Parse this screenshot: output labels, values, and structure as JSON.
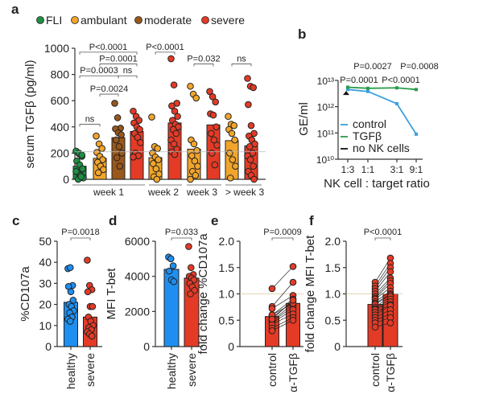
{
  "chart_data": [
    {
      "panel": "a",
      "type": "bar",
      "ylabel": "serum TGFβ (pg/ml)",
      "ylim": [
        0,
        1000
      ],
      "yticks": [
        "0",
        "200",
        "400",
        "600",
        "800",
        "1000"
      ],
      "reference_line": 210,
      "legend": [
        {
          "name": "FLI",
          "color": "#1f8f45"
        },
        {
          "name": "ambulant",
          "color": "#f2a52b"
        },
        {
          "name": "moderate",
          "color": "#98581c"
        },
        {
          "name": "severe",
          "color": "#e33b26"
        }
      ],
      "groups": [
        "week 1",
        "week 2",
        "week 3",
        "> week 3"
      ],
      "bars": [
        {
          "group": "week 1",
          "series": "FLI",
          "mean": 100,
          "points": [
            215,
            195,
            175,
            140,
            110,
            80,
            55,
            30,
            10,
            0,
            20,
            60,
            200,
            185
          ]
        },
        {
          "group": "week 1",
          "series": "ambulant",
          "mean": 160,
          "points": [
            330,
            270,
            235,
            205,
            175,
            150,
            130,
            100,
            75,
            50
          ]
        },
        {
          "group": "week 1",
          "series": "moderate",
          "mean": 318,
          "points": [
            580,
            470,
            390,
            385,
            355,
            340,
            300,
            250,
            200,
            165,
            100
          ]
        },
        {
          "group": "week 1",
          "series": "severe",
          "mean": 365,
          "points": [
            520,
            480,
            450,
            430,
            400,
            380,
            350,
            320,
            280,
            200,
            180,
            170
          ]
        },
        {
          "group": "week 2",
          "series": "ambulant",
          "mean": 165,
          "points": [
            475,
            250,
            235,
            200,
            170,
            150,
            120,
            80,
            40,
            20,
            0
          ]
        },
        {
          "group": "week 2",
          "series": "severe",
          "mean": 430,
          "points": [
            920,
            720,
            580,
            560,
            520,
            480,
            450,
            420,
            400,
            380,
            350,
            300,
            270,
            230,
            210,
            190
          ]
        },
        {
          "group": "week 3",
          "series": "ambulant",
          "mean": 230,
          "points": [
            710,
            650,
            620,
            300,
            270,
            220,
            180,
            140,
            100,
            60,
            30,
            0
          ]
        },
        {
          "group": "week 3",
          "series": "severe",
          "mean": 415,
          "points": [
            670,
            630,
            590,
            500,
            490,
            400,
            350,
            300,
            260,
            200,
            110
          ]
        },
        {
          "group": "> week 3",
          "series": "ambulant",
          "mean": 295,
          "points": [
            480,
            420,
            410,
            380,
            350,
            300,
            200,
            150,
            100,
            10
          ]
        },
        {
          "group": "> week 3",
          "series": "severe",
          "mean": 255,
          "points": [
            770,
            710,
            700,
            570,
            410,
            350,
            330,
            300,
            270,
            250,
            200,
            180,
            150,
            100,
            60,
            30,
            0
          ]
        }
      ],
      "annotations": [
        {
          "text": "ns",
          "from": 0,
          "to": 1,
          "level": 420
        },
        {
          "text": "P=0.0024",
          "from": 1,
          "to": 2,
          "level": 650
        },
        {
          "text": "P=0.0003",
          "from": 0,
          "to": 2,
          "level": 790
        },
        {
          "text": "ns",
          "from": 2,
          "to": 3,
          "level": 790
        },
        {
          "text": "P=0.0001",
          "from": 1,
          "to": 3,
          "level": 880
        },
        {
          "text": "P<0.0001",
          "from": 0,
          "to": 3,
          "level": 970
        },
        {
          "text": "P<0.0001",
          "from": 4,
          "to": 5,
          "level": 970
        },
        {
          "text": "P=0.032",
          "from": 6,
          "to": 7,
          "level": 880
        },
        {
          "text": "ns",
          "from": 8,
          "to": 9,
          "level": 880
        }
      ]
    },
    {
      "panel": "b",
      "type": "line",
      "ylabel": "GE/ml",
      "xlabel": "NK cell : target ratio",
      "yscale": "log",
      "ylim": [
        10000000000.0,
        10000000000000.0
      ],
      "yticks": [
        "10¹⁰",
        "10¹¹",
        "10¹²",
        "10¹³"
      ],
      "categories": [
        "1:3",
        "1:1",
        "3:1",
        "9:1"
      ],
      "series": [
        {
          "name": "control",
          "color": "#3a9fe0",
          "values": [
            4500000000000.0,
            3800000000000.0,
            1300000000000.0,
            90000000000.0
          ]
        },
        {
          "name": "TGFβ",
          "color": "#2a9a4a",
          "values": [
            5500000000000.0,
            5000000000000.0,
            5200000000000.0,
            4500000000000.0
          ]
        }
      ],
      "baseline": {
        "name": "no NK cells",
        "color": "#111111",
        "value": 3200000000000.0
      },
      "annotations": [
        "P=0.0001",
        "P<0.0001",
        "P=0.0027",
        "P=0.0008"
      ]
    },
    {
      "panel": "c",
      "type": "bar",
      "ylabel": "%CD107a",
      "ylim": [
        0,
        50
      ],
      "yticks": [
        "0",
        "10",
        "20",
        "30",
        "40",
        "50"
      ],
      "categories": [
        "healthy",
        "severe"
      ],
      "colors": [
        "#1e8ff0",
        "#e33b26"
      ],
      "means": [
        21,
        14
      ],
      "points": [
        [
          37,
          37.5,
          29,
          28.5,
          26,
          22,
          20,
          19,
          17,
          16,
          14,
          13,
          12
        ],
        [
          41,
          29,
          27,
          26,
          19,
          19,
          14,
          12,
          10,
          9,
          8,
          7,
          6,
          5
        ]
      ],
      "annotation": "P=0.0018"
    },
    {
      "panel": "d",
      "type": "bar",
      "ylabel": "MFI T-bet",
      "ylim": [
        0,
        6000
      ],
      "yticks": [
        "0",
        "2000",
        "4000",
        "6000"
      ],
      "categories": [
        "healthy",
        "severe"
      ],
      "colors": [
        "#1e8ff0",
        "#e33b26"
      ],
      "means": [
        4400,
        3900
      ],
      "points": [
        [
          5100,
          5000,
          4600,
          4300,
          3800,
          3700
        ],
        [
          5700,
          4500,
          4100,
          4000,
          3900,
          3800,
          3600,
          3400,
          3200,
          3000
        ]
      ],
      "annotation": "P=0.033"
    },
    {
      "panel": "e",
      "type": "bar",
      "ylabel": "fold change %CD107a",
      "ylim": [
        0,
        2.0
      ],
      "yticks": [
        "0",
        "0.5",
        "1.0",
        "1.5",
        "2.0"
      ],
      "reference_line": 1.0,
      "paired": true,
      "categories": [
        "control",
        "α-TGFβ"
      ],
      "colors": [
        "#e33b26",
        "#e33b26"
      ],
      "means": [
        0.57,
        0.82
      ],
      "points": [
        [
          1.1,
          0.76,
          0.72,
          0.6,
          0.55,
          0.5,
          0.48,
          0.45,
          0.42,
          0.35,
          0.3,
          0.6,
          0.52
        ],
        [
          1.52,
          1.22,
          0.97,
          0.9,
          0.85,
          0.8,
          0.75,
          0.7,
          0.62,
          0.55,
          0.5,
          0.82,
          0.88
        ]
      ],
      "annotation": "P=0.0009"
    },
    {
      "panel": "f",
      "type": "bar",
      "ylabel": "fold change MFI T-bet",
      "ylim": [
        0,
        2.0
      ],
      "yticks": [
        "0",
        "0.5",
        "1.0",
        "1.5",
        "2.0"
      ],
      "reference_line": 1.0,
      "paired": true,
      "categories": [
        "control",
        "α-TGFβ"
      ],
      "colors": [
        "#e33b26",
        "#e33b26"
      ],
      "means": [
        0.8,
        1.0
      ],
      "points": [
        [
          1.22,
          1.15,
          1.1,
          1.05,
          1.0,
          0.95,
          0.92,
          0.9,
          0.85,
          0.82,
          0.8,
          0.75,
          0.72,
          0.7,
          0.65,
          0.6,
          0.55,
          0.5,
          0.45,
          0.37
        ],
        [
          1.68,
          1.58,
          1.5,
          1.42,
          1.3,
          1.25,
          1.2,
          1.12,
          1.05,
          1.0,
          0.98,
          0.95,
          0.9,
          0.85,
          0.8,
          0.78,
          0.7,
          0.62,
          0.55,
          0.45
        ]
      ],
      "annotation": "P<0.0001"
    }
  ]
}
